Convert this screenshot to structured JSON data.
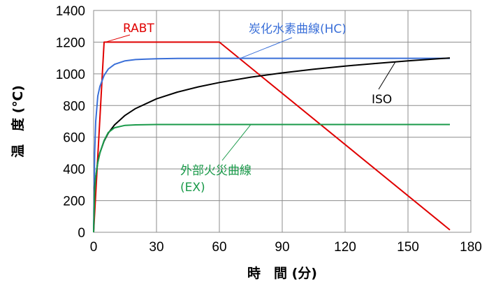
{
  "chart_data": {
    "type": "line",
    "title": "",
    "xlabel": "時　間 (分)",
    "ylabel": "温　度 (℃)",
    "xlim": [
      0,
      180
    ],
    "ylim": [
      0,
      1400
    ],
    "xticks": [
      "0",
      "30",
      "60",
      "90",
      "120",
      "150",
      "180"
    ],
    "yticks": [
      "0",
      "200",
      "400",
      "600",
      "800",
      "1000",
      "1200",
      "1400"
    ],
    "grid": true,
    "legend": "none",
    "series": [
      {
        "name": "RABT",
        "color": "#e00000",
        "x": [
          0,
          5,
          60,
          170
        ],
        "y": [
          0,
          1200,
          1200,
          15
        ]
      },
      {
        "name": "炭化水素曲線(HC)",
        "color": "#3a6fd8",
        "x": [
          0,
          0.5,
          1,
          2,
          3,
          5,
          7,
          10,
          15,
          20,
          25,
          30,
          40,
          60,
          100,
          140,
          170
        ],
        "y": [
          0,
          500,
          700,
          860,
          920,
          990,
          1030,
          1060,
          1082,
          1090,
          1093,
          1095,
          1097,
          1098,
          1098,
          1098,
          1098
        ]
      },
      {
        "name": "ISO",
        "color": "#000000",
        "x": [
          0,
          0.5,
          1,
          2,
          3,
          5,
          7,
          10,
          15,
          20,
          30,
          40,
          50,
          60,
          75,
          90,
          105,
          120,
          135,
          150,
          170
        ],
        "y": [
          0,
          280,
          350,
          445,
          502,
          576,
          626,
          678,
          738,
          781,
          842,
          885,
          918,
          945,
          979,
          1006,
          1029,
          1049,
          1066,
          1082,
          1100
        ]
      },
      {
        "name": "外部火災曲線\n(EX)",
        "color": "#1a9a4a",
        "x": [
          0,
          0.5,
          1,
          2,
          3,
          5,
          7,
          10,
          15,
          20,
          30,
          60,
          100,
          140,
          170
        ],
        "y": [
          0,
          250,
          350,
          440,
          500,
          580,
          630,
          660,
          675,
          678,
          680,
          680,
          680,
          680,
          680
        ]
      }
    ]
  }
}
